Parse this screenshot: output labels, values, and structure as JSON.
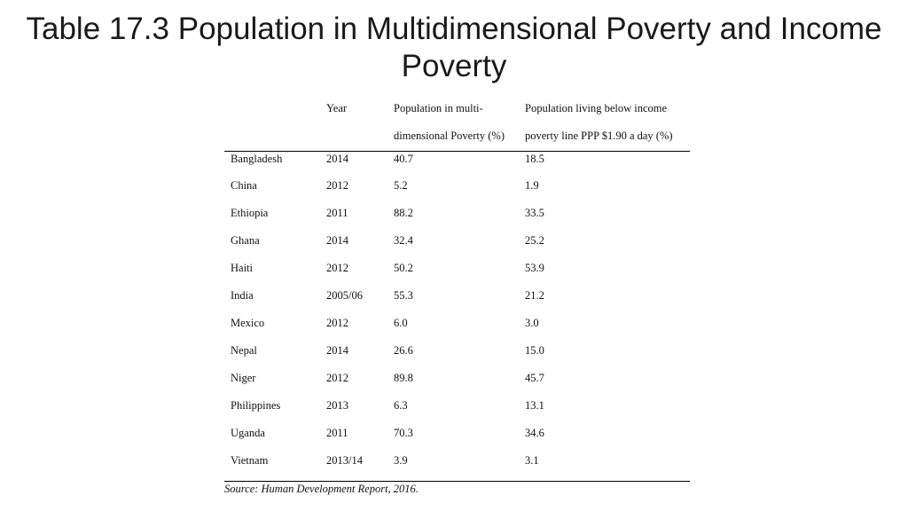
{
  "title_line1": "Table 17.3 Population in Multidimensional Poverty and Income",
  "title_line2": "Poverty",
  "table": {
    "headers": {
      "year": "Year",
      "multi_line1": "Population in multi-",
      "multi_line2": "dimensional Poverty (%)",
      "income_line1": "Population living below income",
      "income_line2": "poverty line PPP $1.90 a day (%)"
    },
    "rows": [
      {
        "country": "Bangladesh",
        "year": "2014",
        "multi": "40.7",
        "income": "18.5"
      },
      {
        "country": "China",
        "year": "2012",
        "multi": "5.2",
        "income": "1.9"
      },
      {
        "country": "Ethiopia",
        "year": "2011",
        "multi": "88.2",
        "income": "33.5"
      },
      {
        "country": "Ghana",
        "year": "2014",
        "multi": "32.4",
        "income": "25.2"
      },
      {
        "country": "Haiti",
        "year": "2012",
        "multi": "50.2",
        "income": "53.9"
      },
      {
        "country": "India",
        "year": "2005/06",
        "multi": "55.3",
        "income": "21.2"
      },
      {
        "country": "Mexico",
        "year": "2012",
        "multi": "6.0",
        "income": "3.0"
      },
      {
        "country": "Nepal",
        "year": "2014",
        "multi": "26.6",
        "income": "15.0"
      },
      {
        "country": "Niger",
        "year": "2012",
        "multi": "89.8",
        "income": "45.7"
      },
      {
        "country": "Philippines",
        "year": "2013",
        "multi": "6.3",
        "income": "13.1"
      },
      {
        "country": "Uganda",
        "year": "2011",
        "multi": "70.3",
        "income": "34.6"
      },
      {
        "country": "Vietnam",
        "year": "2013/14",
        "multi": "3.9",
        "income": "3.1"
      }
    ],
    "source": "Source: Human Development Report, 2016."
  }
}
